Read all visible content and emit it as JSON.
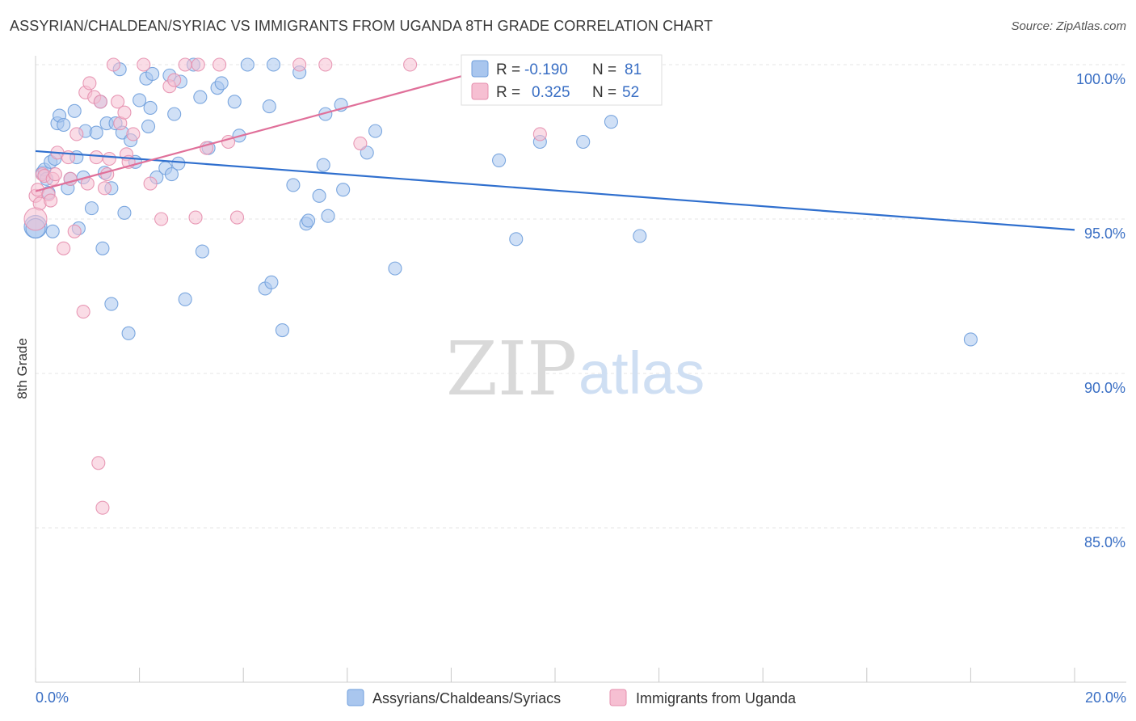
{
  "title": "ASSYRIAN/CHALDEAN/SYRIAC VS IMMIGRANTS FROM UGANDA 8TH GRADE CORRELATION CHART",
  "source": "Source: ZipAtlas.com",
  "watermark": {
    "zip": "ZIP",
    "atlas": "atlas"
  },
  "legend": {
    "r_label": "R =",
    "n_label": "N =",
    "entries": [
      {
        "r": "-0.190",
        "n": "81",
        "color": "#a9c6ee",
        "stroke": "#6f9fdc"
      },
      {
        "r": "0.325",
        "n": "52",
        "color": "#f6bfd2",
        "stroke": "#e58fae"
      }
    ]
  },
  "bottom_legend": [
    "Assyrians/Chaldeans/Syriacs",
    "Immigrants from Uganda"
  ],
  "chart_data": {
    "type": "scatter",
    "title": "ASSYRIAN/CHALDEAN/SYRIAC VS IMMIGRANTS FROM UGANDA 8TH GRADE CORRELATION CHART",
    "xlabel": "",
    "ylabel": "8th Grade",
    "xlim": [
      0,
      20
    ],
    "ylim": [
      80,
      100.5
    ],
    "x_tick_labels": [
      "0.0%",
      "20.0%"
    ],
    "y_ticks": [
      85,
      90,
      95,
      100
    ],
    "y_tick_labels": [
      "85.0%",
      "90.0%",
      "95.0%",
      "100.0%"
    ],
    "grid": true,
    "series": [
      {
        "name": "Assyrians/Chaldeans/Syriacs",
        "color": "#6f9fdc",
        "fill": "#a9c6ee",
        "line_color": "#2f6fce",
        "trend": {
          "x": [
            0,
            20
          ],
          "y": [
            97.2,
            94.65
          ]
        },
        "points": [
          [
            0.0,
            94.75
          ],
          [
            0.13,
            96.5
          ],
          [
            0.17,
            96.6
          ],
          [
            0.21,
            96.3
          ],
          [
            0.25,
            95.85
          ],
          [
            0.29,
            96.85
          ],
          [
            0.33,
            94.6
          ],
          [
            0.37,
            96.95
          ],
          [
            0.42,
            98.1
          ],
          [
            0.46,
            98.35
          ],
          [
            0.54,
            98.05
          ],
          [
            0.62,
            96.0
          ],
          [
            0.67,
            96.3
          ],
          [
            0.75,
            98.5
          ],
          [
            0.79,
            97.0
          ],
          [
            0.83,
            94.7
          ],
          [
            0.92,
            96.35
          ],
          [
            0.96,
            97.85
          ],
          [
            1.08,
            95.35
          ],
          [
            1.17,
            97.8
          ],
          [
            1.25,
            98.8
          ],
          [
            1.29,
            94.05
          ],
          [
            1.33,
            96.5
          ],
          [
            1.37,
            98.1
          ],
          [
            1.46,
            96.0
          ],
          [
            1.46,
            92.25
          ],
          [
            1.54,
            98.1
          ],
          [
            1.62,
            99.85
          ],
          [
            1.67,
            97.8
          ],
          [
            1.71,
            95.2
          ],
          [
            1.79,
            91.3
          ],
          [
            1.83,
            97.55
          ],
          [
            1.92,
            96.85
          ],
          [
            2.0,
            98.85
          ],
          [
            2.13,
            99.55
          ],
          [
            2.17,
            98.0
          ],
          [
            2.21,
            98.6
          ],
          [
            2.25,
            99.7
          ],
          [
            2.33,
            96.35
          ],
          [
            2.5,
            96.65
          ],
          [
            2.58,
            99.65
          ],
          [
            2.62,
            96.45
          ],
          [
            2.67,
            98.4
          ],
          [
            2.75,
            96.8
          ],
          [
            2.79,
            99.45
          ],
          [
            2.88,
            92.4
          ],
          [
            3.04,
            100.0
          ],
          [
            3.17,
            98.95
          ],
          [
            3.21,
            93.95
          ],
          [
            3.33,
            97.3
          ],
          [
            3.5,
            99.25
          ],
          [
            3.58,
            99.4
          ],
          [
            3.83,
            98.8
          ],
          [
            3.92,
            97.7
          ],
          [
            4.08,
            100.0
          ],
          [
            4.42,
            92.75
          ],
          [
            4.5,
            98.65
          ],
          [
            4.54,
            92.95
          ],
          [
            4.58,
            100.0
          ],
          [
            4.75,
            91.4
          ],
          [
            4.96,
            96.1
          ],
          [
            5.08,
            99.75
          ],
          [
            5.21,
            94.85
          ],
          [
            5.25,
            94.95
          ],
          [
            5.46,
            95.75
          ],
          [
            5.54,
            96.75
          ],
          [
            5.58,
            98.4
          ],
          [
            5.63,
            95.1
          ],
          [
            5.88,
            98.7
          ],
          [
            5.92,
            95.95
          ],
          [
            6.38,
            97.15
          ],
          [
            6.54,
            97.85
          ],
          [
            6.92,
            93.4
          ],
          [
            8.92,
            96.9
          ],
          [
            9.25,
            94.35
          ],
          [
            9.71,
            97.5
          ],
          [
            10.54,
            97.5
          ],
          [
            11.08,
            98.15
          ],
          [
            11.63,
            94.45
          ],
          [
            18.0,
            91.1
          ],
          [
            0.0,
            94.7
          ]
        ],
        "sizes": {
          "0": 14,
          "80": 12
        }
      },
      {
        "name": "Immigrants from Uganda",
        "color": "#e58fae",
        "fill": "#f6bfd2",
        "line_color": "#e0709a",
        "trend": {
          "x": [
            0,
            8.8
          ],
          "y": [
            95.9,
            99.9
          ]
        },
        "points": [
          [
            0.0,
            95.75
          ],
          [
            0.04,
            95.95
          ],
          [
            0.08,
            95.5
          ],
          [
            0.13,
            96.45
          ],
          [
            0.17,
            96.4
          ],
          [
            0.25,
            95.8
          ],
          [
            0.29,
            95.6
          ],
          [
            0.33,
            96.3
          ],
          [
            0.38,
            96.45
          ],
          [
            0.42,
            97.15
          ],
          [
            0.54,
            94.05
          ],
          [
            0.63,
            97.0
          ],
          [
            0.67,
            96.3
          ],
          [
            0.75,
            94.6
          ],
          [
            0.79,
            97.75
          ],
          [
            0.92,
            92.0
          ],
          [
            0.96,
            99.1
          ],
          [
            1.0,
            96.15
          ],
          [
            1.04,
            99.4
          ],
          [
            1.13,
            98.95
          ],
          [
            1.17,
            97.0
          ],
          [
            1.21,
            87.1
          ],
          [
            1.25,
            98.8
          ],
          [
            1.29,
            85.65
          ],
          [
            1.33,
            96.0
          ],
          [
            1.38,
            96.45
          ],
          [
            1.42,
            96.95
          ],
          [
            1.5,
            100.0
          ],
          [
            1.58,
            98.8
          ],
          [
            1.63,
            98.1
          ],
          [
            1.71,
            98.45
          ],
          [
            1.75,
            97.1
          ],
          [
            1.79,
            96.85
          ],
          [
            1.88,
            97.75
          ],
          [
            2.08,
            100.0
          ],
          [
            2.21,
            96.15
          ],
          [
            2.42,
            95.0
          ],
          [
            2.58,
            99.3
          ],
          [
            2.67,
            99.5
          ],
          [
            2.88,
            100.0
          ],
          [
            3.08,
            95.05
          ],
          [
            3.13,
            100.0
          ],
          [
            3.29,
            97.3
          ],
          [
            3.54,
            100.0
          ],
          [
            3.71,
            97.5
          ],
          [
            3.88,
            95.05
          ],
          [
            5.08,
            100.0
          ],
          [
            5.58,
            100.0
          ],
          [
            6.25,
            97.45
          ],
          [
            7.21,
            100.0
          ],
          [
            9.71,
            97.75
          ],
          [
            0.0,
            95.0
          ]
        ],
        "sizes": {
          "51": 14
        }
      }
    ]
  }
}
